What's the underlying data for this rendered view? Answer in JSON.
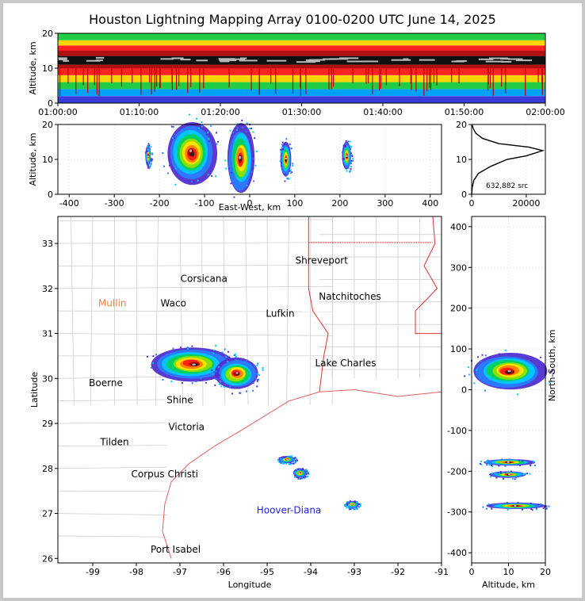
{
  "title": "Houston Lightning Mapping Array 0100-0200 UTC June 14, 2025",
  "chart_data": [
    {
      "type": "heatmap",
      "panel": "time-altitude",
      "ylabel": "Altitude, km",
      "x_ticks": [
        "01:00:00",
        "01:10:00",
        "01:20:00",
        "01:30:00",
        "01:40:00",
        "01:50:00",
        "02:00:00"
      ],
      "y_ticks": [
        0,
        10,
        20
      ],
      "xlim": [
        "01:00:00",
        "02:00:00"
      ],
      "ylim": [
        0,
        20
      ],
      "bands": [
        {
          "alt": [
            0,
            2
          ],
          "color": "#3a3ad8"
        },
        {
          "alt": [
            2,
            4
          ],
          "color": "#00a0ff"
        },
        {
          "alt": [
            4,
            6
          ],
          "color": "#22cc44"
        },
        {
          "alt": [
            6,
            8
          ],
          "color": "#ffd400"
        },
        {
          "alt": [
            8,
            10
          ],
          "color": "#ff2222"
        },
        {
          "alt": [
            10,
            11
          ],
          "color": "#b01010"
        },
        {
          "alt": [
            11,
            13.5
          ],
          "color": "#101010"
        },
        {
          "alt": [
            13.5,
            15
          ],
          "color": "#b01010"
        },
        {
          "alt": [
            15,
            16.5
          ],
          "color": "#ff2222"
        },
        {
          "alt": [
            16.5,
            18
          ],
          "color": "#ffd400"
        },
        {
          "alt": [
            18,
            20
          ],
          "color": "#22cc44"
        }
      ]
    },
    {
      "type": "heatmap",
      "panel": "east-west-altitude",
      "xlabel": "East-West, km",
      "ylabel": "Altitude, km",
      "x_ticks": [
        -400,
        -300,
        -200,
        -100,
        0,
        100,
        200,
        300,
        400
      ],
      "y_ticks": [
        0,
        10,
        20
      ],
      "xlim": [
        -425,
        425
      ],
      "ylim": [
        0,
        20
      ],
      "clusters": [
        {
          "x": -130,
          "z": 12,
          "rx": 55,
          "rz": 9
        },
        {
          "x": -20,
          "z": 10,
          "rx": 30,
          "rz": 10
        },
        {
          "x": 80,
          "z": 10,
          "rx": 12,
          "rz": 5
        },
        {
          "x": 215,
          "z": 11,
          "rx": 10,
          "rz": 4
        },
        {
          "x": -225,
          "z": 11,
          "rx": 6,
          "rz": 3
        }
      ]
    },
    {
      "type": "line",
      "panel": "altitude-histogram",
      "annotation": "632,882 src",
      "x_ticks": [
        0,
        20000
      ],
      "y_ticks": [
        0,
        10,
        20
      ],
      "xlim": [
        0,
        27000
      ],
      "ylim": [
        0,
        20
      ],
      "points": [
        [
          0,
          0
        ],
        [
          200,
          2
        ],
        [
          800,
          4
        ],
        [
          2500,
          6
        ],
        [
          7000,
          8
        ],
        [
          13000,
          10
        ],
        [
          20000,
          11
        ],
        [
          26000,
          12.5
        ],
        [
          21000,
          13.5
        ],
        [
          10000,
          14.5
        ],
        [
          4000,
          16
        ],
        [
          1500,
          17.5
        ],
        [
          500,
          19
        ],
        [
          150,
          20
        ]
      ]
    },
    {
      "type": "scatter",
      "panel": "map",
      "xlabel": "Longitude",
      "ylabel": "Latitude",
      "x_ticks": [
        -99,
        -98,
        -97,
        -96,
        -95,
        -94,
        -93,
        -92,
        -91
      ],
      "y_ticks": [
        26,
        27,
        28,
        29,
        30,
        31,
        32,
        33
      ],
      "xlim": [
        -99.8,
        -91
      ],
      "ylim": [
        25.9,
        33.6
      ],
      "cities": [
        {
          "name": "Shreveport",
          "lon": -93.75,
          "lat": 32.55,
          "color": "#000000"
        },
        {
          "name": "Corsicana",
          "lon": -96.45,
          "lat": 32.15,
          "color": "#000000"
        },
        {
          "name": "Natchitoches",
          "lon": -93.1,
          "lat": 31.75,
          "color": "#000000"
        },
        {
          "name": "Mullin",
          "lon": -98.55,
          "lat": 31.6,
          "color": "#f08040"
        },
        {
          "name": "Waco",
          "lon": -97.15,
          "lat": 31.6,
          "color": "#000000"
        },
        {
          "name": "Lufkin",
          "lon": -94.7,
          "lat": 31.37,
          "color": "#000000"
        },
        {
          "name": "Lake Charles",
          "lon": -93.2,
          "lat": 30.27,
          "color": "#000000"
        },
        {
          "name": "Boerne",
          "lon": -98.7,
          "lat": 29.83,
          "color": "#000000"
        },
        {
          "name": "Shine",
          "lon": -97.0,
          "lat": 29.45,
          "color": "#000000"
        },
        {
          "name": "Victoria",
          "lon": -96.85,
          "lat": 28.85,
          "color": "#000000"
        },
        {
          "name": "Tilden",
          "lon": -98.5,
          "lat": 28.52,
          "color": "#000000"
        },
        {
          "name": "Corpus Christi",
          "lon": -97.35,
          "lat": 27.8,
          "color": "#000000"
        },
        {
          "name": "Hoover-Diana",
          "lon": -94.5,
          "lat": 27.0,
          "color": "#2020dd"
        },
        {
          "name": "Port Isabel",
          "lon": -97.1,
          "lat": 26.13,
          "color": "#000000"
        }
      ],
      "clusters": [
        {
          "lon": -96.7,
          "lat": 30.32,
          "rlon": 0.95,
          "rlat": 0.38
        },
        {
          "lon": -95.7,
          "lat": 30.1,
          "rlon": 0.5,
          "rlat": 0.35
        },
        {
          "lon": -94.55,
          "lat": 28.2,
          "rlon": 0.18,
          "rlat": 0.08
        },
        {
          "lon": -94.25,
          "lat": 27.9,
          "rlon": 0.15,
          "rlat": 0.1
        },
        {
          "lon": -93.05,
          "lat": 27.2,
          "rlon": 0.15,
          "rlat": 0.08
        }
      ]
    },
    {
      "type": "heatmap",
      "panel": "altitude-north-south",
      "xlabel": "Altitude, km",
      "ylabel": "North-South, km",
      "x_ticks": [
        0,
        10,
        20
      ],
      "y_ticks": [
        -400,
        -300,
        -200,
        -100,
        0,
        100,
        200,
        300,
        400
      ],
      "xlim": [
        0,
        20
      ],
      "ylim": [
        -425,
        425
      ],
      "clusters": [
        {
          "z": 10,
          "y": 45,
          "rz": 10,
          "ry": 45
        },
        {
          "z": 10,
          "y": -178,
          "rz": 7,
          "ry": 8
        },
        {
          "z": 10,
          "y": -208,
          "rz": 5,
          "ry": 8
        },
        {
          "z": 12,
          "y": -285,
          "rz": 8,
          "ry": 8
        }
      ]
    }
  ]
}
